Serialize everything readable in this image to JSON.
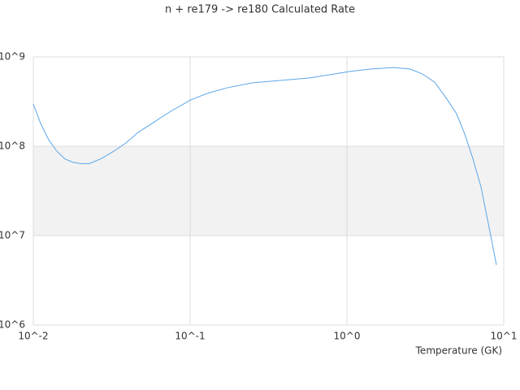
{
  "chart_data": {
    "type": "line",
    "title": "n + re179 -> re180 Calculated Rate",
    "xlabel": "Temperature (GK)",
    "xscale": "log",
    "yscale": "log",
    "grid": true,
    "band_color": "#f2f2f2",
    "x": [
      0.01,
      0.01113,
      0.01254,
      0.01413,
      0.01593,
      0.01795,
      0.02023,
      0.0228,
      0.0272,
      0.0326,
      0.039,
      0.0466,
      0.0591,
      0.0751,
      0.101,
      0.1284,
      0.173,
      0.248,
      0.376,
      0.57,
      0.769,
      1.04,
      1.4,
      2.0,
      2.54,
      3.03,
      3.63,
      4.34,
      5.0,
      5.64,
      6.35,
      7.16,
      8.07,
      8.98
    ],
    "series": [
      {
        "name": "Calculated Rate",
        "color": "#5aa6e8",
        "values": [
          297000000,
          180000000,
          118000000,
          88000000,
          72000000,
          66000000,
          64000000,
          64000000,
          73000000,
          88000000,
          109000000,
          143000000,
          187000000,
          246000000,
          330000000,
          390000000,
          452000000,
          512000000,
          545000000,
          580000000,
          630000000,
          686000000,
          730000000,
          760000000,
          730000000,
          644000000,
          520000000,
          337000000,
          231000000,
          137000000,
          73000000,
          35000000,
          12300000,
          4700000
        ]
      }
    ],
    "xlim": [
      0.01,
      10
    ],
    "ylim": [
      1000000,
      1000000000
    ],
    "xticks": [
      {
        "value": 0.01,
        "label": "10^-2"
      },
      {
        "value": 0.1,
        "label": "10^-1"
      },
      {
        "value": 1,
        "label": "10^0"
      },
      {
        "value": 10,
        "label": "10^1"
      }
    ],
    "yticks": [
      {
        "value": 1000000,
        "label": "10^6"
      },
      {
        "value": 10000000,
        "label": "10^7"
      },
      {
        "value": 100000000,
        "label": "10^8"
      },
      {
        "value": 1000000000,
        "label": "10^9"
      }
    ]
  }
}
